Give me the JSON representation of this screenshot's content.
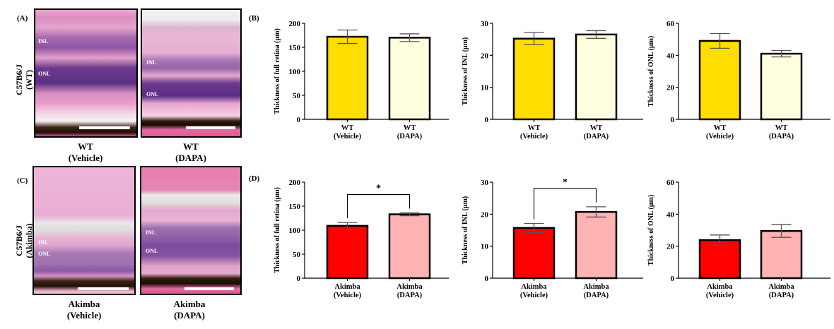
{
  "figure": {
    "panels": {
      "A": "(A)",
      "B": "(B)",
      "C": "(C)",
      "D": "(D)"
    },
    "row_labels": {
      "wt": "C57B6/J\n(WT)",
      "akimba": "C57B6/J\n(Akimba)"
    },
    "micrographs": [
      {
        "id": "wt-vehicle",
        "caption": "WT\n(Vehicle)",
        "labels": [
          "INL",
          "ONL"
        ]
      },
      {
        "id": "wt-dapa",
        "caption": "WT\n(DAPA)",
        "labels": [
          "INL",
          "ONL"
        ]
      },
      {
        "id": "akimba-vehicle",
        "caption": "Akimba\n(Vehicle)",
        "labels": [
          "INL",
          "ONL"
        ]
      },
      {
        "id": "akimba-dapa",
        "caption": "Akimba\n(DAPA)",
        "labels": [
          "INL",
          "ONL"
        ]
      }
    ],
    "colors": {
      "wt_vehicle": "#FFDD00",
      "wt_dapa": "#FFFFE0",
      "akimba_vehicle": "#FF0000",
      "akimba_dapa": "#FFB3B3",
      "error_bar": "#555555",
      "axis": "#000000"
    }
  },
  "chart_data": [
    {
      "id": "B1",
      "panel": "B",
      "type": "bar",
      "title": "",
      "ylabel": "Thickness of full retina (μm)",
      "xlabel": "",
      "categories": [
        "WT\n(Vehicle)",
        "WT\n(DAPA)"
      ],
      "values": [
        172,
        170
      ],
      "errors": [
        14,
        8
      ],
      "ylim": [
        0,
        200
      ],
      "yticks": [
        0,
        50,
        100,
        150,
        200
      ],
      "significance": null
    },
    {
      "id": "B2",
      "panel": "B",
      "type": "bar",
      "title": "",
      "ylabel": "Thickness of INL (μm)",
      "xlabel": "",
      "categories": [
        "WT\n(Vehicle)",
        "WT\n(DAPA)"
      ],
      "values": [
        25.2,
        26.5
      ],
      "errors": [
        1.9,
        1.2
      ],
      "ylim": [
        0,
        30
      ],
      "yticks": [
        0,
        10,
        20,
        30
      ],
      "significance": null
    },
    {
      "id": "B3",
      "panel": "B",
      "type": "bar",
      "title": "",
      "ylabel": "Thickness of ONL (μm)",
      "xlabel": "",
      "categories": [
        "WT\n(Vehicle)",
        "WT\n(DAPA)"
      ],
      "values": [
        49,
        41
      ],
      "errors": [
        4.6,
        2
      ],
      "ylim": [
        0,
        60
      ],
      "yticks": [
        0,
        20,
        40,
        60
      ],
      "significance": null
    },
    {
      "id": "D1",
      "panel": "D",
      "type": "bar",
      "title": "",
      "ylabel": "Thickness of full retina (μm)",
      "xlabel": "",
      "categories": [
        "Akimba\n(Vehicle)",
        "Akimba\n(DAPA)"
      ],
      "values": [
        109,
        133
      ],
      "errors": [
        7,
        3
      ],
      "ylim": [
        0,
        200
      ],
      "yticks": [
        0,
        50,
        100,
        150,
        200
      ],
      "significance": {
        "between": [
          0,
          1
        ],
        "label": "*"
      }
    },
    {
      "id": "D2",
      "panel": "D",
      "type": "bar",
      "title": "",
      "ylabel": "Thickness of INL (μm)",
      "xlabel": "",
      "categories": [
        "Akimba\n(Vehicle)",
        "Akimba\n(DAPA)"
      ],
      "values": [
        15.7,
        20.7
      ],
      "errors": [
        1.4,
        1.6
      ],
      "ylim": [
        0,
        30
      ],
      "yticks": [
        0,
        10,
        20,
        30
      ],
      "significance": {
        "between": [
          0,
          1
        ],
        "label": "*"
      }
    },
    {
      "id": "D3",
      "panel": "D",
      "type": "bar",
      "title": "",
      "ylabel": "Thickness of ONL (μm)",
      "xlabel": "",
      "categories": [
        "Akimba\n(Vehicle)",
        "Akimba\n(DAPA)"
      ],
      "values": [
        23.8,
        29.5
      ],
      "errors": [
        3.2,
        4
      ],
      "ylim": [
        0,
        60
      ],
      "yticks": [
        0,
        20,
        40,
        60
      ],
      "significance": null
    }
  ]
}
